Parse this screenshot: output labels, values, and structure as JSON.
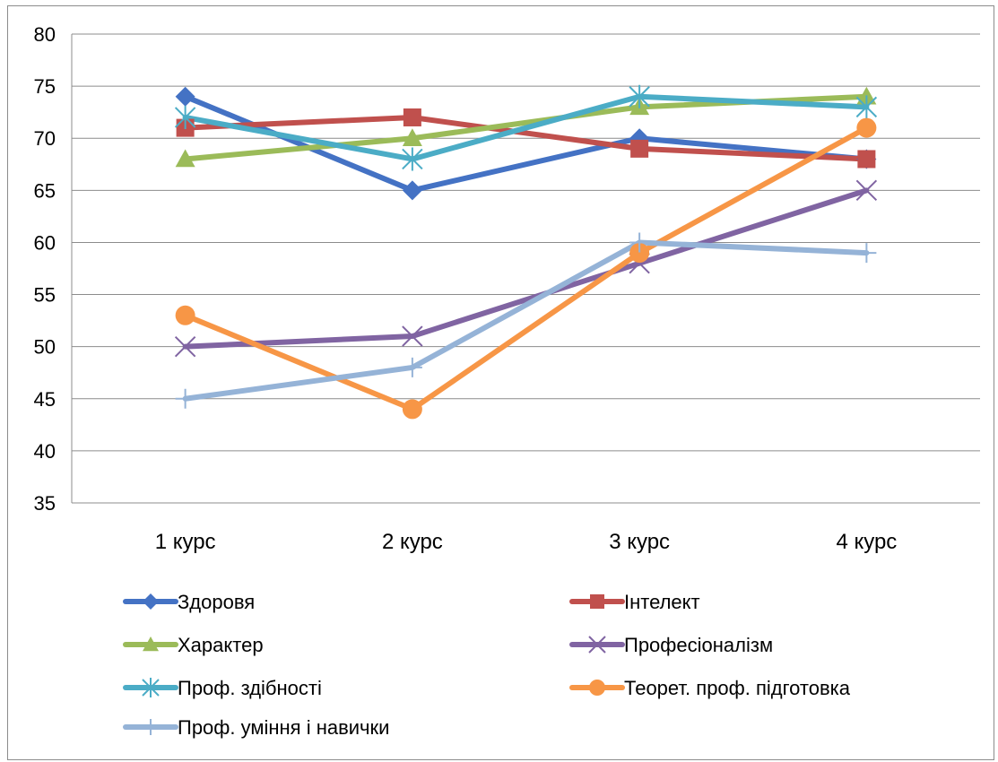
{
  "chart_data": {
    "type": "line",
    "title": "",
    "xlabel": "",
    "ylabel": "",
    "ylim": [
      35,
      80
    ],
    "y_ticks": [
      35,
      40,
      45,
      50,
      55,
      60,
      65,
      70,
      75,
      80
    ],
    "y_tick_labels": [
      "35",
      "40",
      "45",
      "50",
      "55",
      "60",
      "65",
      "70",
      "75",
      "80"
    ],
    "grid": true,
    "legend_position": "bottom",
    "categories": [
      "1 курс",
      "2 курс",
      "3 курс",
      "4 курс"
    ],
    "series": [
      {
        "name": "Здоровя",
        "values": [
          74,
          65,
          70,
          68
        ],
        "color": "#4472C4",
        "marker": "diamond"
      },
      {
        "name": "Інтелект",
        "values": [
          71,
          72,
          69,
          68
        ],
        "color": "#C0504D",
        "marker": "square"
      },
      {
        "name": "Характер",
        "values": [
          68,
          70,
          73,
          74
        ],
        "color": "#9BBB59",
        "marker": "triangle"
      },
      {
        "name": "Професіоналізм",
        "values": [
          50,
          51,
          58,
          65
        ],
        "color": "#8064A2",
        "marker": "x"
      },
      {
        "name": "Проф. здібності",
        "values": [
          72,
          68,
          74,
          73
        ],
        "color": "#4BACC6",
        "marker": "star"
      },
      {
        "name": "Теорет. проф. підготовка",
        "values": [
          53,
          44,
          59,
          71
        ],
        "color": "#F79646",
        "marker": "circle"
      },
      {
        "name": "Проф. уміння і навички",
        "values": [
          45,
          48,
          60,
          59
        ],
        "color": "#95B3D7",
        "marker": "plus"
      }
    ]
  }
}
